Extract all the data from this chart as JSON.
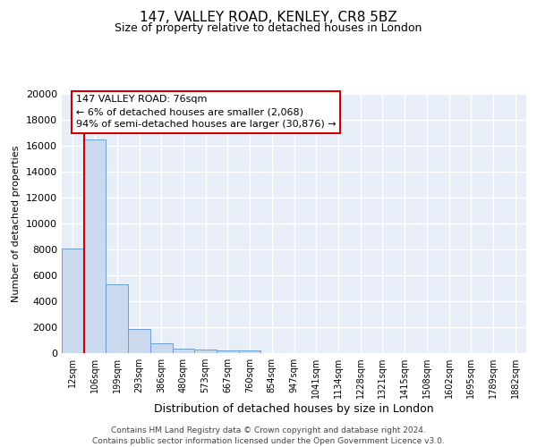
{
  "title1": "147, VALLEY ROAD, KENLEY, CR8 5BZ",
  "title2": "Size of property relative to detached houses in London",
  "xlabel": "Distribution of detached houses by size in London",
  "ylabel": "Number of detached properties",
  "bar_labels": [
    "12sqm",
    "106sqm",
    "199sqm",
    "293sqm",
    "386sqm",
    "480sqm",
    "573sqm",
    "667sqm",
    "760sqm",
    "854sqm",
    "947sqm",
    "1041sqm",
    "1134sqm",
    "1228sqm",
    "1321sqm",
    "1415sqm",
    "1508sqm",
    "1602sqm",
    "1695sqm",
    "1789sqm",
    "1882sqm"
  ],
  "bar_values": [
    8100,
    16500,
    5300,
    1850,
    750,
    320,
    250,
    210,
    210,
    0,
    0,
    0,
    0,
    0,
    0,
    0,
    0,
    0,
    0,
    0,
    0
  ],
  "bar_color": "#ccdaf0",
  "bar_edge_color": "#6a9fd8",
  "bg_color": "#e8eef8",
  "grid_color": "#ffffff",
  "redline_x": 0.5,
  "annotation_title": "147 VALLEY ROAD: 76sqm",
  "annotation_line1": "← 6% of detached houses are smaller (2,068)",
  "annotation_line2": "94% of semi-detached houses are larger (30,876) →",
  "annotation_box_color": "#ffffff",
  "annotation_border_color": "#cc0000",
  "redline_color": "#cc0000",
  "ylim": [
    0,
    20000
  ],
  "yticks": [
    0,
    2000,
    4000,
    6000,
    8000,
    10000,
    12000,
    14000,
    16000,
    18000,
    20000
  ],
  "title1_fontsize": 11,
  "title2_fontsize": 9,
  "ylabel_fontsize": 8,
  "xlabel_fontsize": 9,
  "tick_fontsize": 8,
  "xtick_fontsize": 7,
  "footer1": "Contains HM Land Registry data © Crown copyright and database right 2024.",
  "footer2": "Contains public sector information licensed under the Open Government Licence v3.0."
}
